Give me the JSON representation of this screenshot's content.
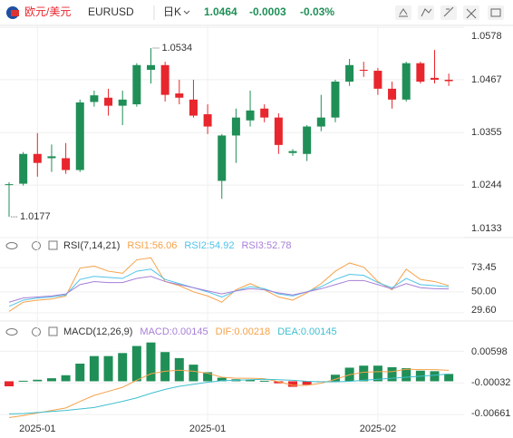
{
  "header": {
    "symbol_name": "欧元/美元",
    "symbol": "EURUSD",
    "period": "日K",
    "price": "1.0464",
    "change": "-0.0003",
    "change_pct": "-0.03%"
  },
  "chart_data": [
    {
      "type": "candlestick",
      "categories": [
        null,
        null,
        "2025-01",
        null,
        null,
        null,
        null,
        null,
        null,
        null,
        null,
        null,
        null,
        null,
        "2025-01",
        null,
        null,
        null,
        null,
        null,
        null,
        null,
        null,
        null,
        null,
        null,
        "2025-02",
        null,
        null,
        null,
        null,
        null
      ],
      "open": [
        1.0245,
        1.0247,
        1.031,
        1.0301,
        1.0301,
        1.0276,
        1.042,
        1.0429,
        1.0412,
        1.0415,
        1.0488,
        1.0498,
        1.0438,
        1.0425,
        1.0394,
        1.0253,
        1.0349,
        1.0381,
        1.0406,
        1.0387,
        1.0312,
        1.031,
        1.0368,
        1.0387,
        1.0463,
        1.0488,
        1.0486,
        1.0448,
        1.0425,
        1.0502,
        1.0471,
        1.0467
      ],
      "high": [
        1.025,
        1.0314,
        1.0354,
        1.033,
        1.0333,
        1.0425,
        1.0444,
        1.0448,
        1.0444,
        1.0502,
        1.0534,
        1.0505,
        1.0467,
        1.0467,
        1.0415,
        1.0352,
        1.0406,
        1.0444,
        1.0415,
        1.0396,
        1.032,
        1.0371,
        1.0435,
        1.0467,
        1.0511,
        1.0505,
        1.0492,
        1.0463,
        1.0505,
        1.0505,
        1.053,
        1.048
      ],
      "low": [
        1.0177,
        1.0243,
        1.0262,
        1.0272,
        1.0268,
        1.0272,
        1.041,
        1.0391,
        1.0371,
        1.041,
        1.0459,
        1.0421,
        1.0415,
        1.0387,
        1.0352,
        1.0215,
        1.0291,
        1.0368,
        1.0377,
        1.031,
        1.0306,
        1.0295,
        1.0358,
        1.0377,
        1.0454,
        1.0473,
        1.0435,
        1.0406,
        1.0421,
        1.0459,
        1.0459,
        1.0454
      ],
      "close": [
        1.0246,
        1.031,
        1.0291,
        1.0305,
        1.0276,
        1.0419,
        1.0434,
        1.0412,
        1.0425,
        1.0498,
        1.0498,
        1.0435,
        1.0429,
        1.0391,
        1.0368,
        1.0349,
        1.0387,
        1.0402,
        1.0387,
        1.0329,
        1.0316,
        1.0368,
        1.0387,
        1.0463,
        1.0498,
        1.0486,
        1.0448,
        1.0425,
        1.0502,
        1.0463,
        1.0467,
        1.0464
      ],
      "up_color": "#1f8f57",
      "down_color": "#e8262d",
      "ylim": [
        1.0133,
        1.0582
      ],
      "yticks": [
        1.0578,
        1.0467,
        1.0355,
        1.0244,
        1.0133
      ],
      "grid": true
    },
    {
      "type": "line",
      "title": "RSI(7,14,21)",
      "series": [
        {
          "name": "RSI1:56.06",
          "color": "#f5a24a",
          "values": [
            31,
            40,
            42,
            43,
            46,
            73,
            75,
            70,
            68,
            81,
            83,
            60,
            56,
            50,
            46,
            40,
            52,
            58,
            52,
            45,
            42,
            49,
            58,
            70,
            78,
            74,
            60,
            52,
            72,
            62,
            60,
            56.06
          ]
        },
        {
          "name": "RSI2:54.92",
          "color": "#4fc3e8",
          "values": [
            36,
            42,
            44,
            45,
            47,
            62,
            65,
            64,
            63,
            70,
            72,
            62,
            58,
            54,
            50,
            45,
            51,
            55,
            53,
            48,
            46,
            50,
            55,
            62,
            67,
            66,
            59,
            54,
            63,
            57,
            56,
            54.92
          ]
        },
        {
          "name": "RSI3:52.78",
          "color": "#a77fd6",
          "values": [
            40,
            44,
            45,
            46,
            48,
            57,
            60,
            59,
            59,
            63,
            65,
            60,
            57,
            54,
            51,
            48,
            51,
            53,
            52,
            49,
            47,
            50,
            53,
            57,
            61,
            61,
            57,
            53,
            58,
            54,
            53,
            52.78
          ]
        }
      ],
      "ylim": [
        23.5,
        85
      ],
      "yticks": [
        73.45,
        {
          "value": 50,
          "label": "50.00"
        },
        {
          "value": 29.6,
          "label": "29.60"
        }
      ],
      "grid": true
    },
    {
      "type": "combo",
      "title": "MACD(12,26,9)",
      "series": [
        {
          "name": "MACD:0.00145",
          "kind": "bar",
          "color": "#a77fd6",
          "up_color": "#1f8f57",
          "down_color": "#e8262d",
          "values": [
            -0.001,
            0.0001,
            0.0003,
            0.0006,
            0.0012,
            0.0035,
            0.005,
            0.005,
            0.0056,
            0.007,
            0.0077,
            0.0058,
            0.0046,
            0.0033,
            0.0018,
            0.0007,
            0.0004,
            0.0003,
            0.0001,
            -0.0004,
            -0.0011,
            -0.0007,
            -0.0001,
            0.0013,
            0.0027,
            0.0031,
            0.0031,
            0.0028,
            0.0026,
            0.0021,
            0.002,
            0.00145
          ]
        },
        {
          "name": "DIF:0.00218",
          "kind": "line",
          "color": "#f5a24a",
          "values": [
            -0.0072,
            -0.0068,
            -0.0063,
            -0.0058,
            -0.0053,
            -0.004,
            -0.0028,
            -0.002,
            -0.0012,
            0.0002,
            0.0015,
            0.002,
            0.0022,
            0.002,
            0.0016,
            0.0008,
            0.0006,
            0.0006,
            0.0005,
            -0.0001,
            -0.0008,
            -0.0008,
            -0.0004,
            0.0004,
            0.0013,
            0.0018,
            0.0019,
            0.0019,
            0.0024,
            0.0023,
            0.0023,
            0.00218
          ]
        },
        {
          "name": "DEA:0.00145",
          "kind": "line",
          "color": "#3fbfcf",
          "values": [
            -0.0065,
            -0.0064,
            -0.0062,
            -0.006,
            -0.0058,
            -0.0055,
            -0.0052,
            -0.0046,
            -0.004,
            -0.0033,
            -0.0024,
            -0.0016,
            -0.001,
            -0.0006,
            -0.0002,
            0.0001,
            0.0002,
            0.0003,
            0.0004,
            0.0003,
            0.0002,
            0.0,
            -0.0001,
            -0.0001,
            0.0,
            0.0002,
            0.0004,
            0.0006,
            0.0008,
            0.001,
            0.0012,
            0.00145
          ]
        }
      ],
      "ylim": [
        -0.0082,
        0.008
      ],
      "yticks": [
        0.00598,
        -0.00032,
        -0.00661
      ],
      "grid": true
    }
  ]
}
